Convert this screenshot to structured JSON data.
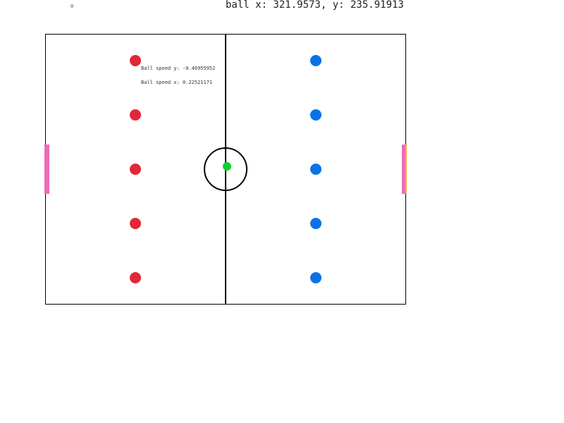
{
  "hud": {
    "score": "0",
    "ball_position": "ball x: 321.9573, y: 235.91913",
    "ball_speed_y": "Ball speed y: -0.46955952",
    "ball_speed_x": "Ball speed x: 0.22521171"
  },
  "colors": {
    "team_left": "#e02838",
    "team_right": "#0a72e8",
    "ball": "#10d030",
    "goal": "#f06ab8",
    "lines": "#000000"
  },
  "team_left_players": 5,
  "team_right_players": 5
}
